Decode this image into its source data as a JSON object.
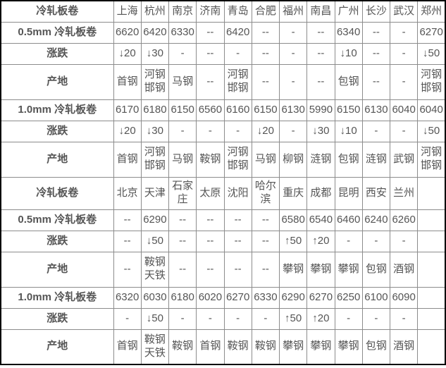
{
  "colors": {
    "up": "#fe0000",
    "down": "#008800",
    "city_link": "#0000ee",
    "section_title": "#ff0000",
    "value_text": "#555555",
    "label_text": "#3a3a3a"
  },
  "table": {
    "sections": [
      {
        "header": {
          "label": "冷轧板卷",
          "cities": [
            "上海",
            "杭州",
            "南京",
            "济南",
            "青岛",
            "合肥",
            "福州",
            "南昌",
            "广州",
            "长沙",
            "武汉",
            "郑州"
          ]
        },
        "rows": [
          {
            "label": "0.5mm 冷轧板卷",
            "type": "price",
            "values": [
              "6620",
              "6420",
              "6330",
              "--",
              "6420",
              "--",
              "-",
              "--",
              "6340",
              "--",
              "-",
              "6270"
            ]
          },
          {
            "label": "涨跌",
            "type": "change",
            "values": [
              "↓20",
              "↓30",
              "-",
              "--",
              "-",
              "--",
              "-",
              "--",
              "↓10",
              "--",
              "-",
              "↓50"
            ]
          },
          {
            "label": "产地",
            "type": "origin",
            "values": [
              "首钢",
              "河钢邯钢",
              "马钢",
              "--",
              "河钢邯钢",
              "--",
              "-",
              "--",
              "包钢",
              "--",
              "-",
              "河钢邯钢"
            ]
          },
          {
            "label": "1.0mm 冷轧板卷",
            "type": "price",
            "values": [
              "6170",
              "6180",
              "6150",
              "6560",
              "6160",
              "6150",
              "6130",
              "5990",
              "6150",
              "6130",
              "6040",
              "6040"
            ]
          },
          {
            "label": "涨跌",
            "type": "change",
            "values": [
              "↓20",
              "↓30",
              "-",
              "-",
              "-",
              "↓20",
              "-",
              "↓30",
              "↓10",
              "-",
              "-",
              "↓50"
            ]
          },
          {
            "label": "产地",
            "type": "origin",
            "values": [
              "首钢",
              "河钢邯钢",
              "马钢",
              "鞍钢",
              "河钢邯钢",
              "马钢",
              "柳钢",
              "涟钢",
              "包钢",
              "涟钢",
              "武钢",
              "河钢邯钢"
            ]
          }
        ]
      },
      {
        "header": {
          "label": "冷轧板卷",
          "cities": [
            "北京",
            "天津",
            "石家庄",
            "太原",
            "沈阳",
            "哈尔滨",
            "重庆",
            "成都",
            "昆明",
            "西安",
            "兰州",
            ""
          ]
        },
        "rows": [
          {
            "label": "0.5mm 冷轧板卷",
            "type": "price",
            "values": [
              "--",
              "6290",
              "--",
              "--",
              "--",
              "--",
              "6580",
              "6540",
              "6460",
              "6240",
              "6260",
              ""
            ]
          },
          {
            "label": "涨跌",
            "type": "change",
            "values": [
              "--",
              "↓50",
              "--",
              "--",
              "--",
              "--",
              "↑50",
              "↑20",
              "-",
              "-",
              "-",
              ""
            ]
          },
          {
            "label": "产地",
            "type": "origin",
            "values": [
              "--",
              "鞍钢天铁",
              "--",
              "--",
              "--",
              "--",
              "攀钢",
              "攀钢",
              "攀钢",
              "包钢",
              "酒钢",
              ""
            ]
          },
          {
            "label": "1.0mm 冷轧板卷",
            "type": "price",
            "values": [
              "6320",
              "6030",
              "6180",
              "6020",
              "6270",
              "6330",
              "6290",
              "6270",
              "6250",
              "6100",
              "6090",
              ""
            ]
          },
          {
            "label": "涨跌",
            "type": "change",
            "values": [
              "-",
              "↓50",
              "-",
              "-",
              "-",
              "-",
              "↑50",
              "↑20",
              "-",
              "-",
              "-",
              ""
            ]
          },
          {
            "label": "产地",
            "type": "origin",
            "values": [
              "首钢",
              "鞍钢天铁",
              "鞍钢",
              "首钢",
              "鞍钢",
              "鞍钢",
              "攀钢",
              "攀钢",
              "攀钢",
              "包钢",
              "酒钢",
              ""
            ]
          }
        ]
      }
    ]
  }
}
